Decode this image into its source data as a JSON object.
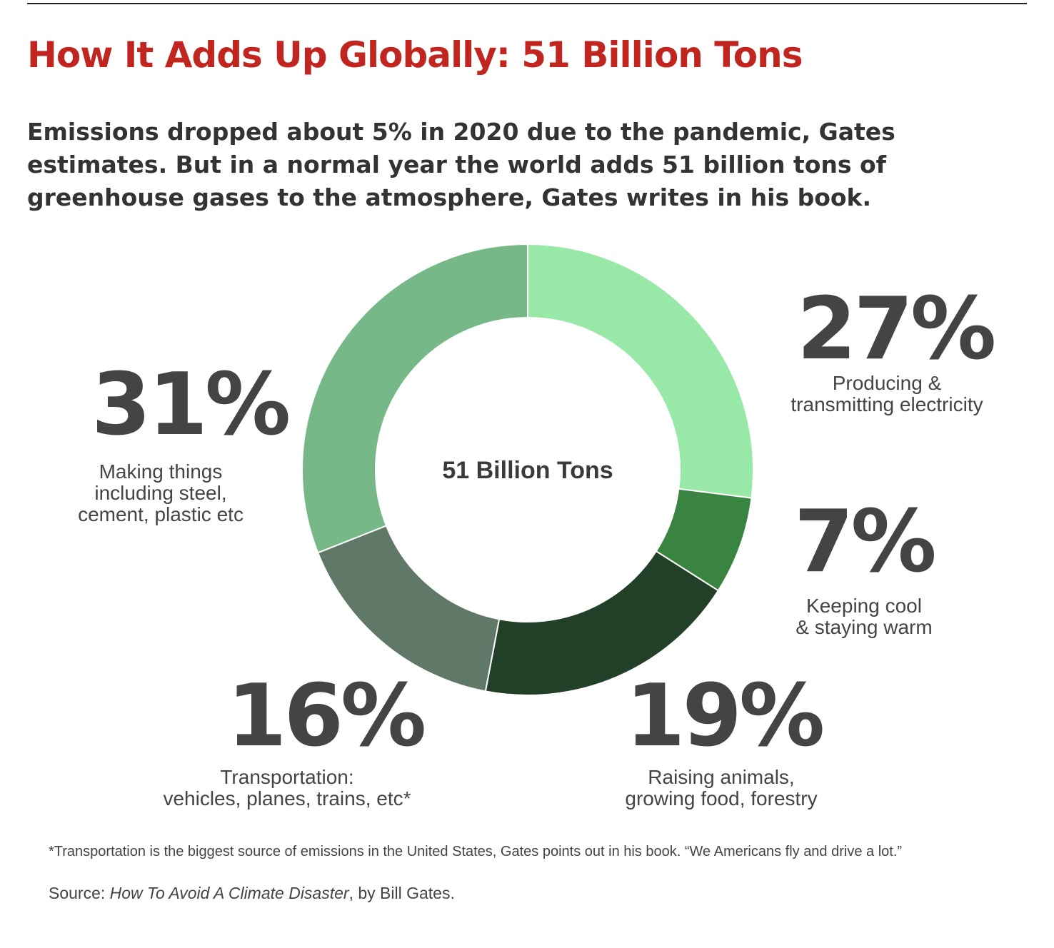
{
  "title": "How It Adds Up Globally: 51 Billion Tons",
  "subtitle": "Emissions dropped about 5% in 2020 due to the pandemic, Gates estimates. But in a normal year the world adds 51 billion tons of greenhouse gases to the atmosphere, Gates writes in his book.",
  "footnote": "*Transportation is the biggest source of emissions in the United States, Gates points out in his book. “We Americans fly and drive a lot.”",
  "source": {
    "prefix": "Source: ",
    "book": "How To Avoid A Climate Disaster",
    "suffix": ", by Bill Gates."
  },
  "chart_data": {
    "type": "pie",
    "variant": "donut",
    "center_label": "51 Billion Tons",
    "slices": [
      {
        "percent": 27,
        "label": "27%",
        "description": [
          "Producing &",
          "transmitting electricity"
        ],
        "color": "#98e8a8"
      },
      {
        "percent": 7,
        "label": "7%",
        "description": [
          "Keeping cool",
          "& staying warm"
        ],
        "color": "#3a8442"
      },
      {
        "percent": 19,
        "label": "19%",
        "description": [
          "Raising animals,",
          "growing food, forestry"
        ],
        "color": "#223f28"
      },
      {
        "percent": 16,
        "label": "16%",
        "description": [
          "Transportation:",
          "vehicles, planes, trains, etc*"
        ],
        "color": "#5f7867"
      },
      {
        "percent": 31,
        "label": "31%",
        "description": [
          "Making things",
          "including steel,",
          "cement, plastic etc"
        ],
        "color": "#76b887"
      }
    ]
  }
}
